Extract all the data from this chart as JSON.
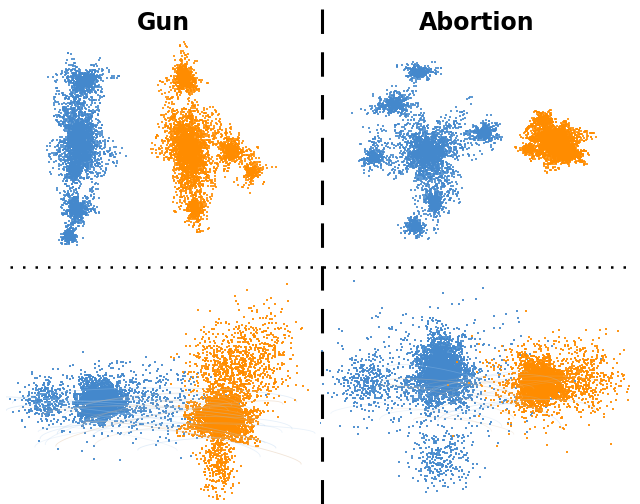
{
  "title_left": "Gun",
  "title_right": "Abortion",
  "blue_color": "#4488CC",
  "orange_color": "#FF8C00",
  "bg_color": "#ffffff",
  "seed": 42,
  "point_size_umap": 2.0,
  "point_size_graph": 3.0,
  "alpha_umap": 0.85,
  "alpha_graph": 0.9
}
